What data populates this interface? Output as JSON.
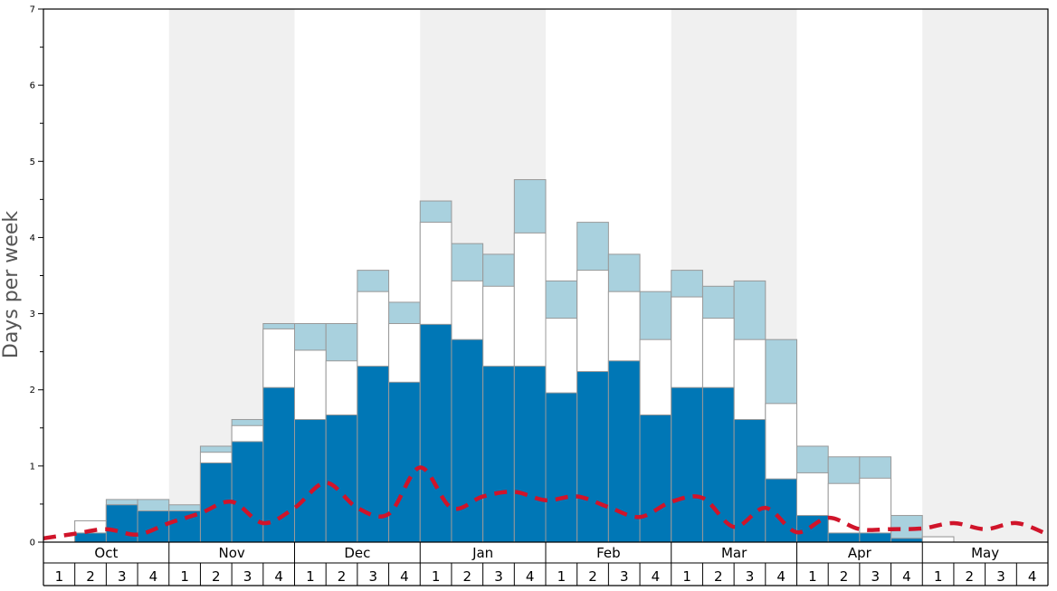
{
  "chart_data": {
    "type": "bar",
    "ylabel": "Days per week",
    "xlabel": "",
    "ylim": [
      0,
      7
    ],
    "y_ticks": [
      "0",
      "1",
      "2",
      "3",
      "4",
      "5",
      "6",
      "7"
    ],
    "months": [
      "Oct",
      "Nov",
      "Dec",
      "Jan",
      "Feb",
      "Mar",
      "Apr",
      "May"
    ],
    "week_labels": [
      "1",
      "2",
      "3",
      "4"
    ],
    "shaded_months": [
      "Nov",
      "Jan",
      "Mar",
      "May"
    ],
    "colors": {
      "series1": "#0077b6",
      "series2": "#ffffff",
      "series3": "#a9d1de",
      "line": "#d0142a",
      "shade": "#f0f0f0",
      "bar_edge": "#999999"
    },
    "series": [
      {
        "role": "dark-blue bars (stacked base)",
        "values": [
          0,
          0.12,
          0.49,
          0.41,
          0.41,
          1.04,
          1.32,
          2.03,
          1.61,
          1.67,
          2.31,
          2.1,
          2.86,
          2.66,
          2.31,
          2.31,
          1.96,
          2.24,
          2.38,
          1.67,
          2.03,
          2.03,
          1.61,
          0.83,
          0.35,
          0.12,
          0.12,
          0.05,
          0,
          0,
          0,
          0
        ]
      },
      {
        "role": "white bars (stacked middle, cumulative top)",
        "values": [
          0,
          0.28,
          0.49,
          0.41,
          0.41,
          1.18,
          1.53,
          2.8,
          2.52,
          2.38,
          3.29,
          2.87,
          4.2,
          3.43,
          3.36,
          4.06,
          2.94,
          3.57,
          3.29,
          2.66,
          3.22,
          2.94,
          2.66,
          1.82,
          0.91,
          0.77,
          0.84,
          0.05,
          0.07,
          0,
          0,
          0
        ]
      },
      {
        "role": "light-blue bars (stacked top, cumulative top)",
        "values": [
          0,
          0.28,
          0.56,
          0.56,
          0.49,
          1.26,
          1.61,
          2.87,
          2.87,
          2.87,
          3.57,
          3.15,
          4.48,
          3.92,
          3.78,
          4.76,
          3.43,
          4.2,
          3.78,
          3.29,
          3.57,
          3.36,
          3.43,
          2.66,
          1.26,
          1.12,
          1.12,
          0.35,
          0.07,
          0,
          0,
          0
        ]
      }
    ],
    "line": {
      "style": "dashed",
      "values": [
        0.05,
        0.11,
        0.17,
        0.1,
        0.25,
        0.38,
        0.53,
        0.25,
        0.45,
        0.78,
        0.45,
        0.37,
        0.98,
        0.45,
        0.6,
        0.66,
        0.55,
        0.6,
        0.46,
        0.33,
        0.53,
        0.58,
        0.2,
        0.45,
        0.13,
        0.32,
        0.17,
        0.17,
        0.18,
        0.25,
        0.17,
        0.25,
        0.1
      ]
    }
  }
}
